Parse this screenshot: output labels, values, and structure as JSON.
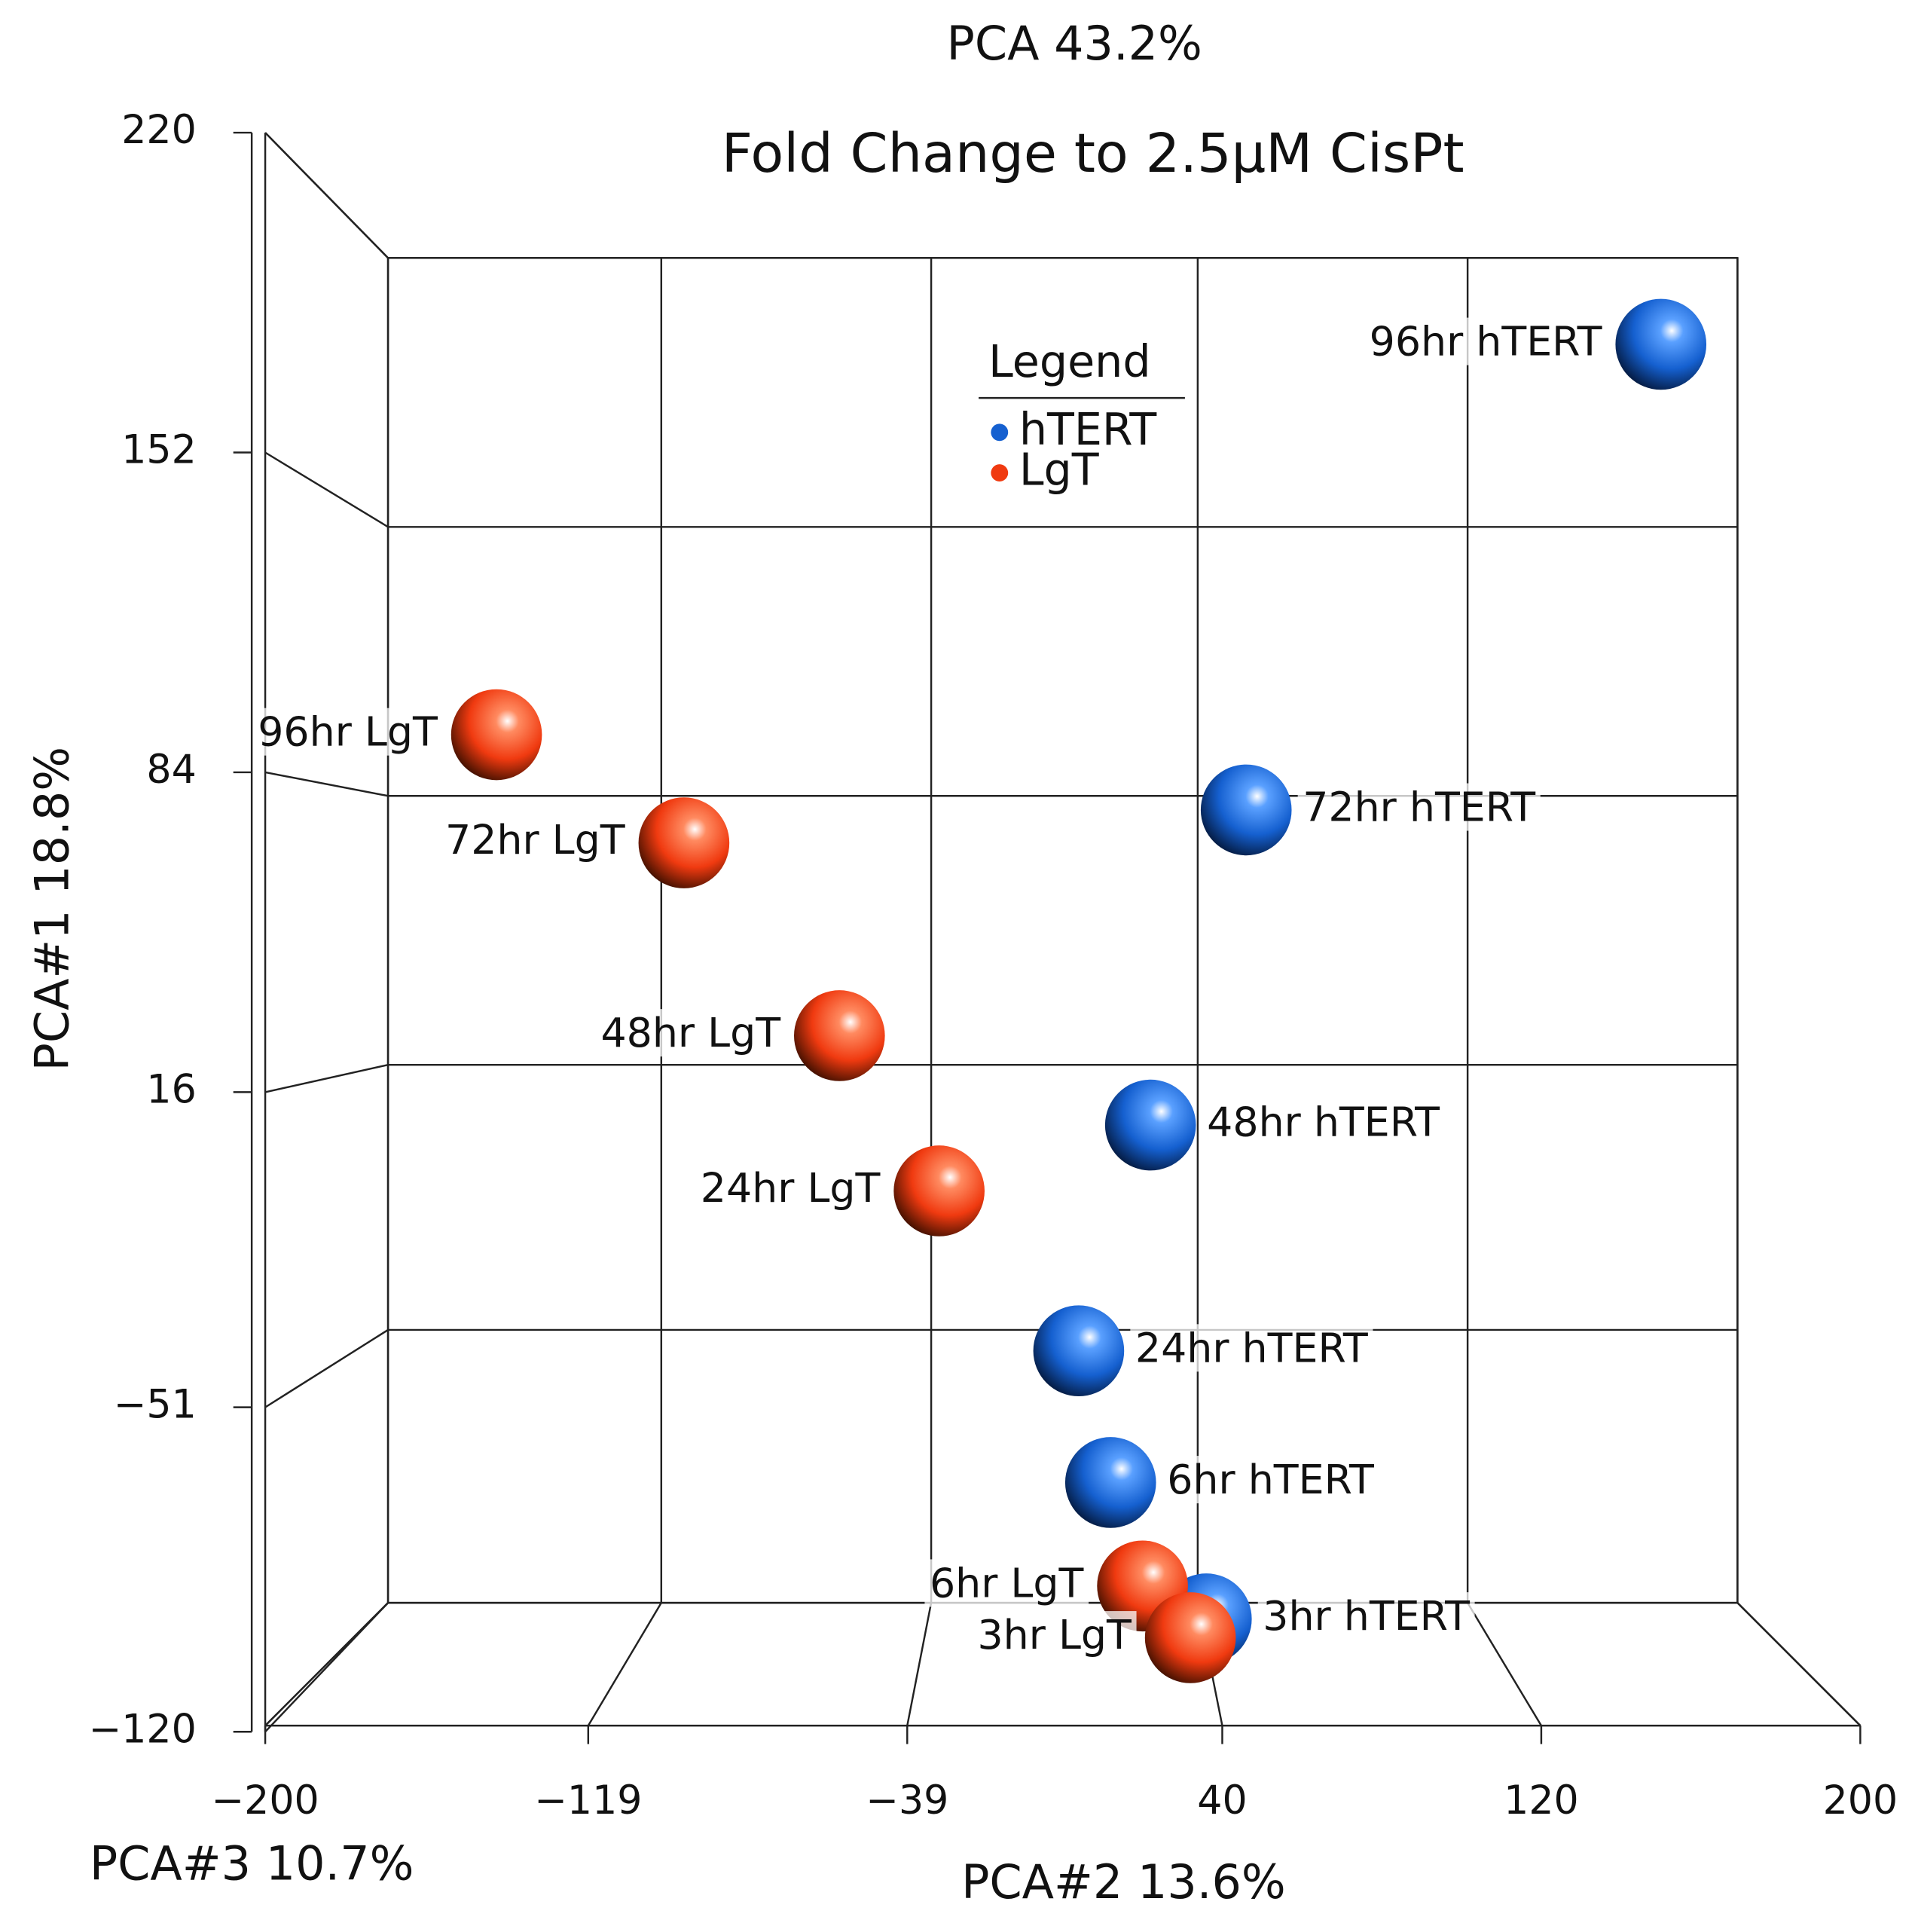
{
  "chart_data": {
    "type": "scatter",
    "title": "Fold Change to 2.5µM CisPt",
    "subtitle": "PCA 43.2%",
    "x_label": "PCA#2 13.6%",
    "y_label": "PCA#1 18.8%",
    "z_label": "PCA#3 10.7%",
    "legend_title": "Legend",
    "xlim": [
      -200,
      200
    ],
    "ylim": [
      -120,
      220
    ],
    "xticks": [
      {
        "value": -200,
        "label": "−200"
      },
      {
        "value": -119,
        "label": "−119"
      },
      {
        "value": -39,
        "label": "−39"
      },
      40,
      120,
      200
    ],
    "yticks": [
      {
        "value": -120,
        "label": "−120"
      },
      {
        "value": -51,
        "label": "−51"
      },
      16,
      84,
      152,
      220
    ],
    "grid": true,
    "series": [
      {
        "name": "hTERT",
        "color": "#1560d0",
        "labels": [
          "96hr hTERT",
          "72hr hTERT",
          "48hr hTERT",
          "24hr hTERT",
          "6hr hTERT",
          "3hr hTERT"
        ],
        "x": [
          150,
          46,
          22,
          4,
          12,
          36
        ],
        "values": [
          175,
          76,
          9,
          -39,
          -67,
          -96
        ]
      },
      {
        "name": "LgT",
        "color": "#f03a10",
        "labels": [
          "96hr LgT",
          "72hr LgT",
          "48hr LgT",
          "24hr LgT",
          "6hr LgT",
          "3hr LgT"
        ],
        "x": [
          -142,
          -95,
          -56,
          -31,
          20,
          32
        ],
        "values": [
          92,
          69,
          28,
          -5,
          -89,
          -100
        ]
      }
    ]
  }
}
